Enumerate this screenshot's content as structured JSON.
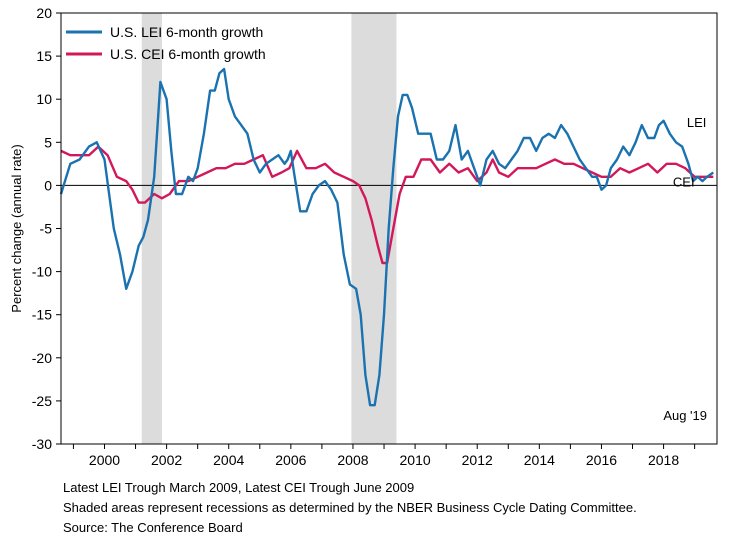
{
  "chart_data": {
    "type": "line",
    "ylabel": "Percent change (annual rate)",
    "xlim": [
      1998.6,
      2019.72
    ],
    "ylim": [
      -30,
      20
    ],
    "x_ticks": [
      2000,
      2002,
      2004,
      2006,
      2008,
      2010,
      2012,
      2014,
      2016,
      2018
    ],
    "x_tick_labels": [
      "2000",
      "2002",
      "2004",
      "2006",
      "2008",
      "2010",
      "2012",
      "2014",
      "2016",
      "2018"
    ],
    "y_ticks": [
      20,
      15,
      10,
      5,
      0,
      -5,
      -10,
      -15,
      -20,
      -25,
      -30
    ],
    "y_tick_labels": [
      "20",
      "15",
      "10",
      "5",
      "0",
      "-5",
      "-10",
      "-15",
      "-20",
      "-25",
      "-30"
    ],
    "recessions": [
      [
        2001.2,
        2001.85
      ],
      [
        2007.95,
        2009.4
      ]
    ],
    "annotation": "Aug '19",
    "series": [
      {
        "name": "U.S. LEI 6-month growth",
        "end_label": "LEI",
        "color": "#1a72b0",
        "x": [
          1998.6,
          1998.9,
          1999.2,
          1999.5,
          1999.75,
          2000.0,
          2000.15,
          2000.3,
          2000.5,
          2000.7,
          2000.9,
          2001.1,
          2001.25,
          2001.4,
          2001.6,
          2001.8,
          2002.0,
          2002.15,
          2002.3,
          2002.5,
          2002.7,
          2002.85,
          2003.0,
          2003.2,
          2003.4,
          2003.55,
          2003.7,
          2003.85,
          2004.0,
          2004.2,
          2004.4,
          2004.6,
          2004.8,
          2005.0,
          2005.2,
          2005.4,
          2005.6,
          2005.8,
          2005.9,
          2006.0,
          2006.1,
          2006.3,
          2006.5,
          2006.7,
          2006.9,
          2007.1,
          2007.3,
          2007.5,
          2007.7,
          2007.9,
          2008.1,
          2008.25,
          2008.4,
          2008.55,
          2008.7,
          2008.85,
          2009.0,
          2009.15,
          2009.3,
          2009.45,
          2009.6,
          2009.75,
          2009.9,
          2010.1,
          2010.3,
          2010.5,
          2010.7,
          2010.9,
          2011.1,
          2011.3,
          2011.5,
          2011.7,
          2011.9,
          2012.1,
          2012.3,
          2012.5,
          2012.7,
          2012.9,
          2013.1,
          2013.3,
          2013.5,
          2013.7,
          2013.9,
          2014.1,
          2014.3,
          2014.5,
          2014.7,
          2014.9,
          2015.1,
          2015.3,
          2015.5,
          2015.7,
          2015.85,
          2016.0,
          2016.15,
          2016.3,
          2016.5,
          2016.7,
          2016.9,
          2017.1,
          2017.3,
          2017.5,
          2017.7,
          2017.85,
          2018.0,
          2018.2,
          2018.4,
          2018.6,
          2018.8,
          2018.95,
          2019.1,
          2019.25,
          2019.4,
          2019.6
        ],
        "values": [
          -1.0,
          2.5,
          3.0,
          4.5,
          5.0,
          3.0,
          -1.0,
          -5.0,
          -8.0,
          -12.0,
          -10.0,
          -7.0,
          -6.0,
          -4.0,
          1.0,
          12.0,
          10.0,
          4.0,
          -1.0,
          -1.0,
          1.0,
          0.5,
          2.0,
          6.0,
          11.0,
          11.0,
          13.0,
          13.5,
          10.0,
          8.0,
          7.0,
          6.0,
          3.0,
          1.5,
          2.5,
          3.0,
          3.5,
          2.5,
          3.0,
          4.0,
          1.5,
          -3.0,
          -3.0,
          -1.0,
          0.0,
          0.5,
          -0.5,
          -2.0,
          -8.0,
          -11.5,
          -12.0,
          -15.0,
          -22.0,
          -25.5,
          -25.5,
          -22.0,
          -15.0,
          -5.0,
          2.0,
          8.0,
          10.5,
          10.5,
          9.0,
          6.0,
          6.0,
          6.0,
          3.0,
          3.0,
          4.0,
          7.0,
          3.0,
          4.0,
          2.0,
          0.0,
          3.0,
          4.0,
          2.5,
          2.0,
          3.0,
          4.0,
          5.5,
          5.5,
          4.0,
          5.5,
          6.0,
          5.5,
          7.0,
          6.0,
          4.5,
          3.0,
          2.0,
          1.0,
          1.0,
          -0.5,
          0.0,
          2.0,
          3.0,
          4.5,
          3.5,
          5.0,
          7.0,
          5.5,
          5.5,
          7.0,
          7.5,
          6.0,
          5.0,
          4.5,
          2.5,
          0.5,
          1.0,
          0.5,
          1.0,
          1.5
        ]
      },
      {
        "name": "U.S. CEI 6-month growth",
        "end_label": "CEI",
        "color": "#d2185a",
        "x": [
          1998.6,
          1998.9,
          1999.2,
          1999.5,
          1999.8,
          2000.1,
          2000.4,
          2000.7,
          2000.9,
          2001.1,
          2001.3,
          2001.6,
          2001.85,
          2002.1,
          2002.4,
          2002.7,
          2003.0,
          2003.3,
          2003.6,
          2003.9,
          2004.2,
          2004.5,
          2004.8,
          2005.1,
          2005.4,
          2005.7,
          2005.95,
          2006.2,
          2006.5,
          2006.8,
          2007.1,
          2007.4,
          2007.7,
          2008.0,
          2008.2,
          2008.4,
          2008.6,
          2008.8,
          2008.95,
          2009.1,
          2009.3,
          2009.5,
          2009.7,
          2009.95,
          2010.2,
          2010.5,
          2010.8,
          2011.1,
          2011.4,
          2011.7,
          2012.0,
          2012.3,
          2012.5,
          2012.7,
          2013.0,
          2013.3,
          2013.6,
          2013.9,
          2014.2,
          2014.5,
          2014.8,
          2015.1,
          2015.4,
          2015.7,
          2016.0,
          2016.3,
          2016.6,
          2016.9,
          2017.2,
          2017.5,
          2017.8,
          2018.1,
          2018.4,
          2018.7,
          2019.0,
          2019.3,
          2019.6
        ],
        "values": [
          4.0,
          3.5,
          3.5,
          3.5,
          4.5,
          3.5,
          1.0,
          0.5,
          -0.5,
          -2.0,
          -2.0,
          -1.0,
          -1.5,
          -1.0,
          0.5,
          0.5,
          1.0,
          1.5,
          2.0,
          2.0,
          2.5,
          2.5,
          3.0,
          3.5,
          1.0,
          1.5,
          2.0,
          4.0,
          2.0,
          2.0,
          2.5,
          1.5,
          1.0,
          0.5,
          0.0,
          -1.5,
          -4.0,
          -7.0,
          -9.0,
          -9.0,
          -5.0,
          -1.0,
          1.0,
          1.0,
          3.0,
          3.0,
          1.5,
          2.5,
          1.5,
          2.0,
          0.5,
          1.5,
          3.0,
          1.5,
          1.0,
          2.0,
          2.0,
          2.0,
          2.5,
          3.0,
          2.5,
          2.5,
          2.0,
          1.5,
          1.0,
          1.0,
          2.0,
          1.5,
          2.0,
          2.5,
          1.5,
          2.5,
          2.5,
          2.0,
          1.0,
          1.0,
          1.0
        ]
      }
    ]
  },
  "footnotes": {
    "line1": "Latest LEI Trough March 2009, Latest CEI Trough June 2009",
    "line2": "Shaded areas represent recessions as determined by the NBER Business Cycle Dating Committee.",
    "line3": "Source: The Conference Board"
  }
}
